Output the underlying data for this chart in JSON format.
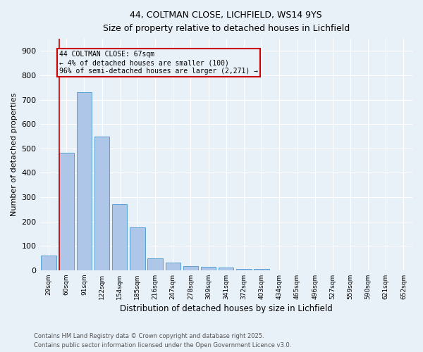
{
  "title1": "44, COLTMAN CLOSE, LICHFIELD, WS14 9YS",
  "title2": "Size of property relative to detached houses in Lichfield",
  "xlabel": "Distribution of detached houses by size in Lichfield",
  "ylabel": "Number of detached properties",
  "categories": [
    "29sqm",
    "60sqm",
    "91sqm",
    "122sqm",
    "154sqm",
    "185sqm",
    "216sqm",
    "247sqm",
    "278sqm",
    "309sqm",
    "341sqm",
    "372sqm",
    "403sqm",
    "434sqm",
    "465sqm",
    "496sqm",
    "527sqm",
    "559sqm",
    "590sqm",
    "621sqm",
    "652sqm"
  ],
  "values": [
    60,
    483,
    730,
    548,
    270,
    175,
    48,
    32,
    18,
    13,
    12,
    5,
    5,
    0,
    0,
    0,
    0,
    0,
    0,
    0,
    0
  ],
  "bar_color": "#aec6e8",
  "bar_edge_color": "#5a9fd4",
  "bg_color": "#e8f0f8",
  "annotation_line1": "44 COLTMAN CLOSE: 67sqm",
  "annotation_line2": "← 4% of detached houses are smaller (100)",
  "annotation_line3": "96% of semi-detached houses are larger (2,271) →",
  "vline_color": "#cc0000",
  "annotation_box_color": "#cc0000",
  "ylim": [
    0,
    950
  ],
  "yticks": [
    0,
    100,
    200,
    300,
    400,
    500,
    600,
    700,
    800,
    900
  ],
  "footer1": "Contains HM Land Registry data © Crown copyright and database right 2025.",
  "footer2": "Contains public sector information licensed under the Open Government Licence v3.0."
}
